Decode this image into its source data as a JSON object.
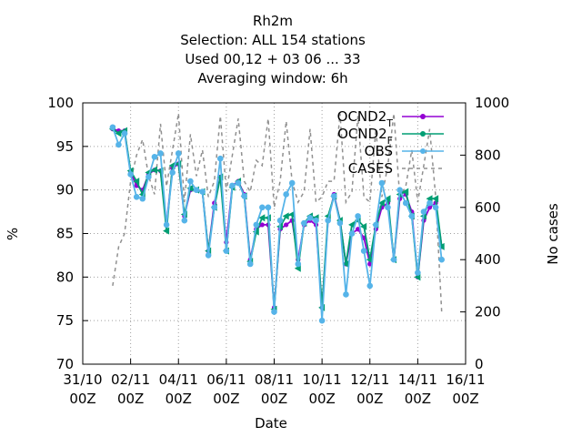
{
  "chart_data": {
    "type": "line",
    "title": [
      "Rh2m",
      "Selection: ALL    154 stations",
      "Used  00,12  + 03 06 ... 33",
      "Averaging window:  6h"
    ],
    "x_label": "Date",
    "y_label": "%",
    "y2_label": "No cases",
    "xlim": [
      0,
      16
    ],
    "xticks": [
      {
        "value": 0,
        "label": "31/10 00Z"
      },
      {
        "value": 2,
        "label": "02/11 00Z"
      },
      {
        "value": 4,
        "label": "04/11 00Z"
      },
      {
        "value": 6,
        "label": "06/11 00Z"
      },
      {
        "value": 8,
        "label": "08/11 00Z"
      },
      {
        "value": 10,
        "label": "10/11 00Z"
      },
      {
        "value": 12,
        "label": "12/11 00Z"
      },
      {
        "value": 14,
        "label": "14/11 00Z"
      },
      {
        "value": 16,
        "label": "16/11 00Z"
      }
    ],
    "ylim": [
      70,
      100
    ],
    "yticks": [
      70,
      75,
      80,
      85,
      90,
      95,
      100
    ],
    "y2lim": [
      0,
      1000
    ],
    "y2ticks": [
      0,
      200,
      400,
      600,
      800,
      1000
    ],
    "grid": true,
    "legend": "top right",
    "x": [
      1.25,
      1.5,
      1.75,
      2,
      2.25,
      2.5,
      2.75,
      3,
      3.25,
      3.5,
      3.75,
      4,
      4.25,
      4.5,
      4.75,
      5,
      5.25,
      5.5,
      5.75,
      6,
      6.25,
      6.5,
      6.75,
      7,
      7.25,
      7.5,
      7.75,
      8,
      8.25,
      8.5,
      8.75,
      9,
      9.25,
      9.5,
      9.75,
      10,
      10.25,
      10.5,
      10.75,
      11,
      11.25,
      11.5,
      11.75,
      12,
      12.25,
      12.5,
      12.75,
      13,
      13.25,
      13.5,
      13.75,
      14,
      14.25,
      14.5,
      14.75,
      15
    ],
    "series": [
      {
        "name": "OCND2_T",
        "color": "#9400d3",
        "marker": "circle",
        "values": [
          97.0,
          96.8,
          96.8,
          92.0,
          90.5,
          90.0,
          91.8,
          92.3,
          92.2,
          86.0,
          92.5,
          93.0,
          87.0,
          90.0,
          90.0,
          89.8,
          83.0,
          88.5,
          91.5,
          84.0,
          90.5,
          91.0,
          89.5,
          82.0,
          85.5,
          86.0,
          86.0,
          76.5,
          85.5,
          86.0,
          86.5,
          82.0,
          86.0,
          86.5,
          86.0,
          76.5,
          86.5,
          89.5,
          86.5,
          81.5,
          85.0,
          85.5,
          84.5,
          81.5,
          85.5,
          88.0,
          88.5,
          82.0,
          89.0,
          89.5,
          87.5,
          80.0,
          86.5,
          88.0,
          88.5,
          83.5
        ]
      },
      {
        "name": "OCND2_F",
        "color": "#009e73",
        "marker": "triangle",
        "values": [
          97.0,
          96.5,
          96.8,
          92.2,
          91.0,
          89.5,
          92.0,
          92.3,
          92.2,
          85.3,
          92.8,
          93.0,
          87.2,
          90.2,
          90.0,
          89.8,
          83.0,
          88.0,
          91.5,
          83.0,
          90.3,
          91.0,
          89.3,
          81.8,
          85.2,
          86.8,
          86.8,
          76.3,
          85.8,
          87.0,
          87.2,
          81.0,
          86.2,
          87.0,
          86.8,
          76.5,
          87.0,
          89.3,
          86.5,
          81.5,
          86.0,
          86.5,
          85.8,
          82.0,
          86.0,
          88.5,
          89.0,
          82.0,
          89.5,
          89.8,
          87.0,
          80.0,
          87.0,
          89.0,
          89.0,
          83.5
        ]
      },
      {
        "name": "OBS",
        "color": "#56b4e9",
        "marker": "circle",
        "values": [
          97.2,
          95.2,
          96.5,
          91.8,
          89.2,
          89.0,
          91.5,
          93.8,
          94.2,
          86.0,
          92.0,
          94.2,
          86.5,
          91.0,
          90.0,
          89.8,
          82.5,
          88.0,
          93.6,
          83.0,
          90.5,
          90.8,
          89.3,
          81.5,
          86.0,
          88.0,
          88.0,
          76.0,
          86.5,
          89.5,
          90.8,
          81.5,
          86.2,
          86.8,
          86.5,
          75.0,
          86.5,
          89.3,
          86.2,
          78.0,
          85.0,
          87.0,
          83.0,
          79.0,
          86.0,
          90.8,
          88.0,
          82.0,
          90.0,
          88.5,
          87.0,
          80.5,
          87.5,
          88.5,
          88.0,
          82.0
        ]
      },
      {
        "name": "CASES",
        "color": "#909090",
        "marker": "none",
        "dash": true,
        "axis": "y2",
        "values": [
          300,
          450,
          500,
          700,
          800,
          860,
          720,
          650,
          920,
          680,
          820,
          960,
          620,
          880,
          720,
          820,
          640,
          700,
          950,
          660,
          800,
          940,
          700,
          660,
          780,
          760,
          940,
          600,
          700,
          930,
          700,
          620,
          660,
          900,
          620,
          640,
          700,
          700,
          960,
          620,
          660,
          950,
          640,
          620,
          900,
          640,
          760,
          960,
          640,
          680,
          820,
          620,
          760,
          900,
          640,
          200
        ]
      }
    ]
  }
}
